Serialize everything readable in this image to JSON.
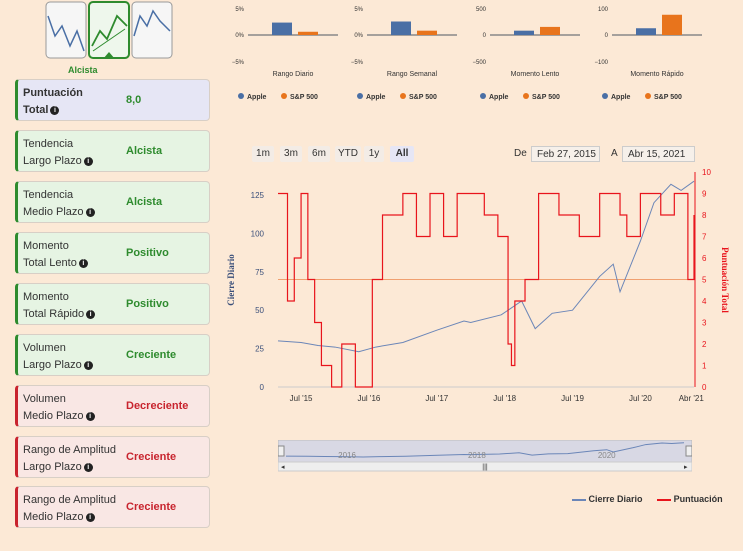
{
  "trend_icon": {
    "label": "Alcista",
    "active_color": "#2e8b2e"
  },
  "cards": [
    {
      "title_line1": "Puntuación",
      "title_line2": "Total",
      "value": "8,0",
      "status": "score"
    },
    {
      "title_line1": "Tendencia",
      "title_line2": "Largo Plazo",
      "value": "Alcista",
      "status": "pos"
    },
    {
      "title_line1": "Tendencia",
      "title_line2": "Medio Plazo",
      "value": "Alcista",
      "status": "pos"
    },
    {
      "title_line1": "Momento",
      "title_line2": "Total Lento",
      "value": "Positivo",
      "status": "pos"
    },
    {
      "title_line1": "Momento",
      "title_line2": "Total Rápido",
      "value": "Positivo",
      "status": "pos"
    },
    {
      "title_line1": "Volumen",
      "title_line2": "Largo Plazo",
      "value": "Creciente",
      "status": "pos"
    },
    {
      "title_line1": "Volumen",
      "title_line2": "Medio Plazo",
      "value": "Decreciente",
      "status": "neg"
    },
    {
      "title_line1": "Rango de Amplitud",
      "title_line2": "Largo Plazo",
      "value": "Creciente",
      "status": "neg"
    },
    {
      "title_line1": "Rango de Amplitud",
      "title_line2": "Medio Plazo",
      "value": "Creciente",
      "status": "neg"
    }
  ],
  "range_buttons": [
    "1m",
    "3m",
    "6m",
    "YTD",
    "1y",
    "All"
  ],
  "selected_range": "All",
  "date_from_label": "De",
  "date_from": "Feb 27, 2015",
  "date_to_label": "A",
  "date_to": "Abr 15, 2021",
  "colors": {
    "apple": "#4a6fa5",
    "sp500": "#e8741c",
    "close": "#6b86b8",
    "score": "#e8141c"
  },
  "chart_data": [
    {
      "type": "bar",
      "title": "Rango Diario",
      "categories": [
        "Apple",
        "S&P 500"
      ],
      "values": [
        2.3,
        0.6
      ],
      "yticks": [
        "5%",
        "0%",
        "−5%"
      ],
      "ylim": [
        -5,
        5
      ]
    },
    {
      "type": "bar",
      "title": "Rango Semanal",
      "categories": [
        "Apple",
        "S&P 500"
      ],
      "values": [
        2.5,
        0.8
      ],
      "yticks": [
        "5%",
        "0%",
        "−5%"
      ],
      "ylim": [
        -5,
        5
      ]
    },
    {
      "type": "bar",
      "title": "Momento Lento",
      "categories": [
        "Apple",
        "S&P 500"
      ],
      "values": [
        80,
        150
      ],
      "yticks": [
        "500",
        "0",
        "−500"
      ],
      "ylim": [
        -500,
        500
      ]
    },
    {
      "type": "bar",
      "title": "Momento Rápido",
      "categories": [
        "Apple",
        "S&P 500"
      ],
      "values": [
        25,
        75
      ],
      "yticks": [
        "100",
        "0",
        "−100"
      ],
      "ylim": [
        -100,
        100
      ]
    },
    {
      "type": "line",
      "xlabel": "",
      "ylabel": "Cierre Diario",
      "y2label": "Puntuación Total",
      "xticks": [
        "Jul '15",
        "Jul '16",
        "Jul '17",
        "Jul '18",
        "Jul '19",
        "Jul '20",
        "Abr '21"
      ],
      "yticks": [
        0,
        25,
        50,
        75,
        100,
        125
      ],
      "y2ticks": [
        0,
        1,
        2,
        3,
        4,
        5,
        6,
        7,
        8,
        9,
        10
      ],
      "ylim": [
        0,
        140
      ],
      "y2lim": [
        0,
        10
      ],
      "series": [
        {
          "name": "Cierre Diario",
          "axis": "left",
          "x": [
            2015.16,
            2015.5,
            2015.75,
            2016.0,
            2016.35,
            2016.6,
            2017.0,
            2017.5,
            2017.9,
            2018.0,
            2018.45,
            2018.75,
            2018.95,
            2019.2,
            2019.5,
            2019.9,
            2020.1,
            2020.2,
            2020.5,
            2020.7,
            2020.95,
            2021.1,
            2021.29
          ],
          "values": [
            30,
            29,
            27,
            26,
            23,
            26,
            29,
            37,
            43,
            42,
            47,
            56,
            38,
            48,
            50,
            72,
            80,
            62,
            95,
            120,
            132,
            128,
            134
          ]
        },
        {
          "name": "Puntuación",
          "axis": "right",
          "x": [
            2015.16,
            2015.3,
            2015.4,
            2015.5,
            2015.6,
            2015.7,
            2015.8,
            2015.95,
            2016.1,
            2016.3,
            2016.5,
            2016.55,
            2016.7,
            2017.0,
            2017.2,
            2017.4,
            2017.6,
            2017.8,
            2018.0,
            2018.2,
            2018.4,
            2018.55,
            2018.6,
            2018.65,
            2018.8,
            2019.0,
            2019.3,
            2019.6,
            2019.9,
            2020.2,
            2020.3,
            2020.5,
            2020.8,
            2021.0,
            2021.2,
            2021.29
          ],
          "values": [
            9,
            4,
            6,
            9,
            5,
            3,
            1,
            0,
            2,
            0,
            0,
            5,
            8,
            9,
            7,
            9,
            7,
            9,
            9,
            8,
            7,
            2,
            1,
            4,
            5,
            9,
            8,
            7,
            9,
            8,
            7,
            9,
            8,
            9,
            5,
            8
          ]
        }
      ]
    }
  ],
  "navigator_labels": [
    "2016",
    "2018",
    "2020"
  ],
  "legend": {
    "close": "Cierre Diario",
    "score": "Puntuación"
  }
}
